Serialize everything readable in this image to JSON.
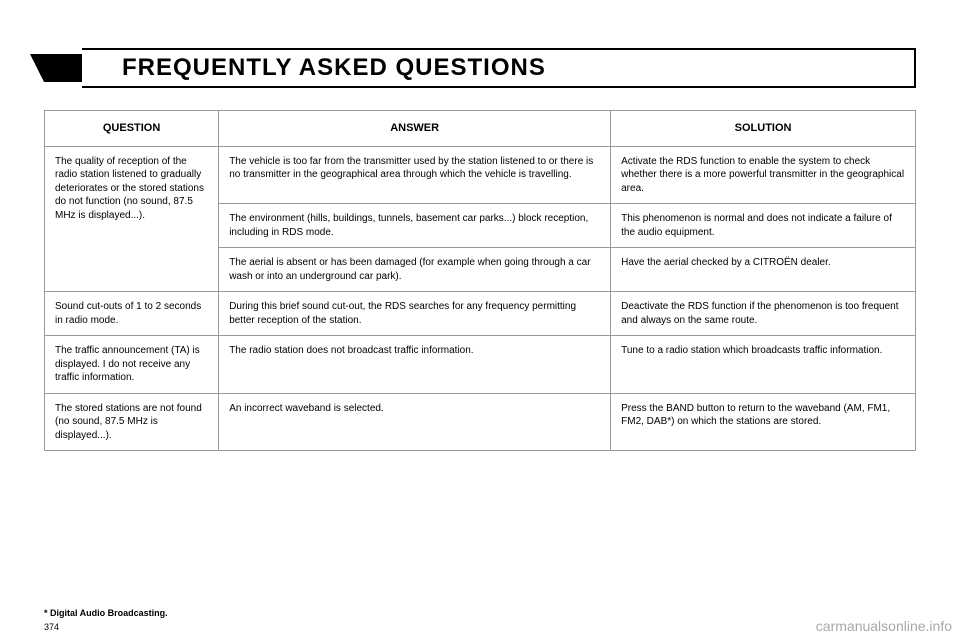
{
  "header": {
    "title": "FREQUENTLY ASKED QUESTIONS"
  },
  "table": {
    "columns": [
      "QUESTION",
      "ANSWER",
      "SOLUTION"
    ],
    "rows": [
      {
        "question": "The quality of reception of the radio station listened to gradually deteriorates or the stored stations do not function (no sound, 87.5 MHz is displayed...).",
        "question_rowspan": 3,
        "answer": "The vehicle is too far from the transmitter used by the station listened to or there is no transmitter in the geographical area through which the vehicle is travelling.",
        "solution": "Activate the RDS function to enable the system to check whether there is a more powerful transmitter in the geographical area."
      },
      {
        "answer": "The environment (hills, buildings, tunnels, basement car parks...) block reception, including in RDS mode.",
        "solution": "This phenomenon is normal and does not indicate a failure of the audio equipment."
      },
      {
        "answer": "The aerial is absent or has been damaged (for example when going through a car wash or into an underground car park).",
        "solution": "Have the aerial checked by a CITROËN dealer."
      },
      {
        "question": "Sound cut-outs of 1 to 2 seconds in radio mode.",
        "answer": "During this brief sound cut-out, the RDS searches for any frequency permitting better reception of the station.",
        "solution": "Deactivate the RDS function if the phenomenon is too frequent and always on the same route."
      },
      {
        "question": "The traffic announcement (TA) is displayed. I do not receive any traffic information.",
        "answer": "The radio station does not broadcast traffic information.",
        "solution": "Tune to a radio station which broadcasts traffic information."
      },
      {
        "question": "The stored stations are not found (no sound, 87.5 MHz is displayed...).",
        "answer": "An incorrect waveband is selected.",
        "solution": "Press the BAND button to return to the waveband (AM, FM1, FM2, DAB*) on which the stations are stored."
      }
    ]
  },
  "footnote": "* Digital Audio Broadcasting.",
  "pagenum": "374",
  "watermark": "carmanualsonline.info"
}
